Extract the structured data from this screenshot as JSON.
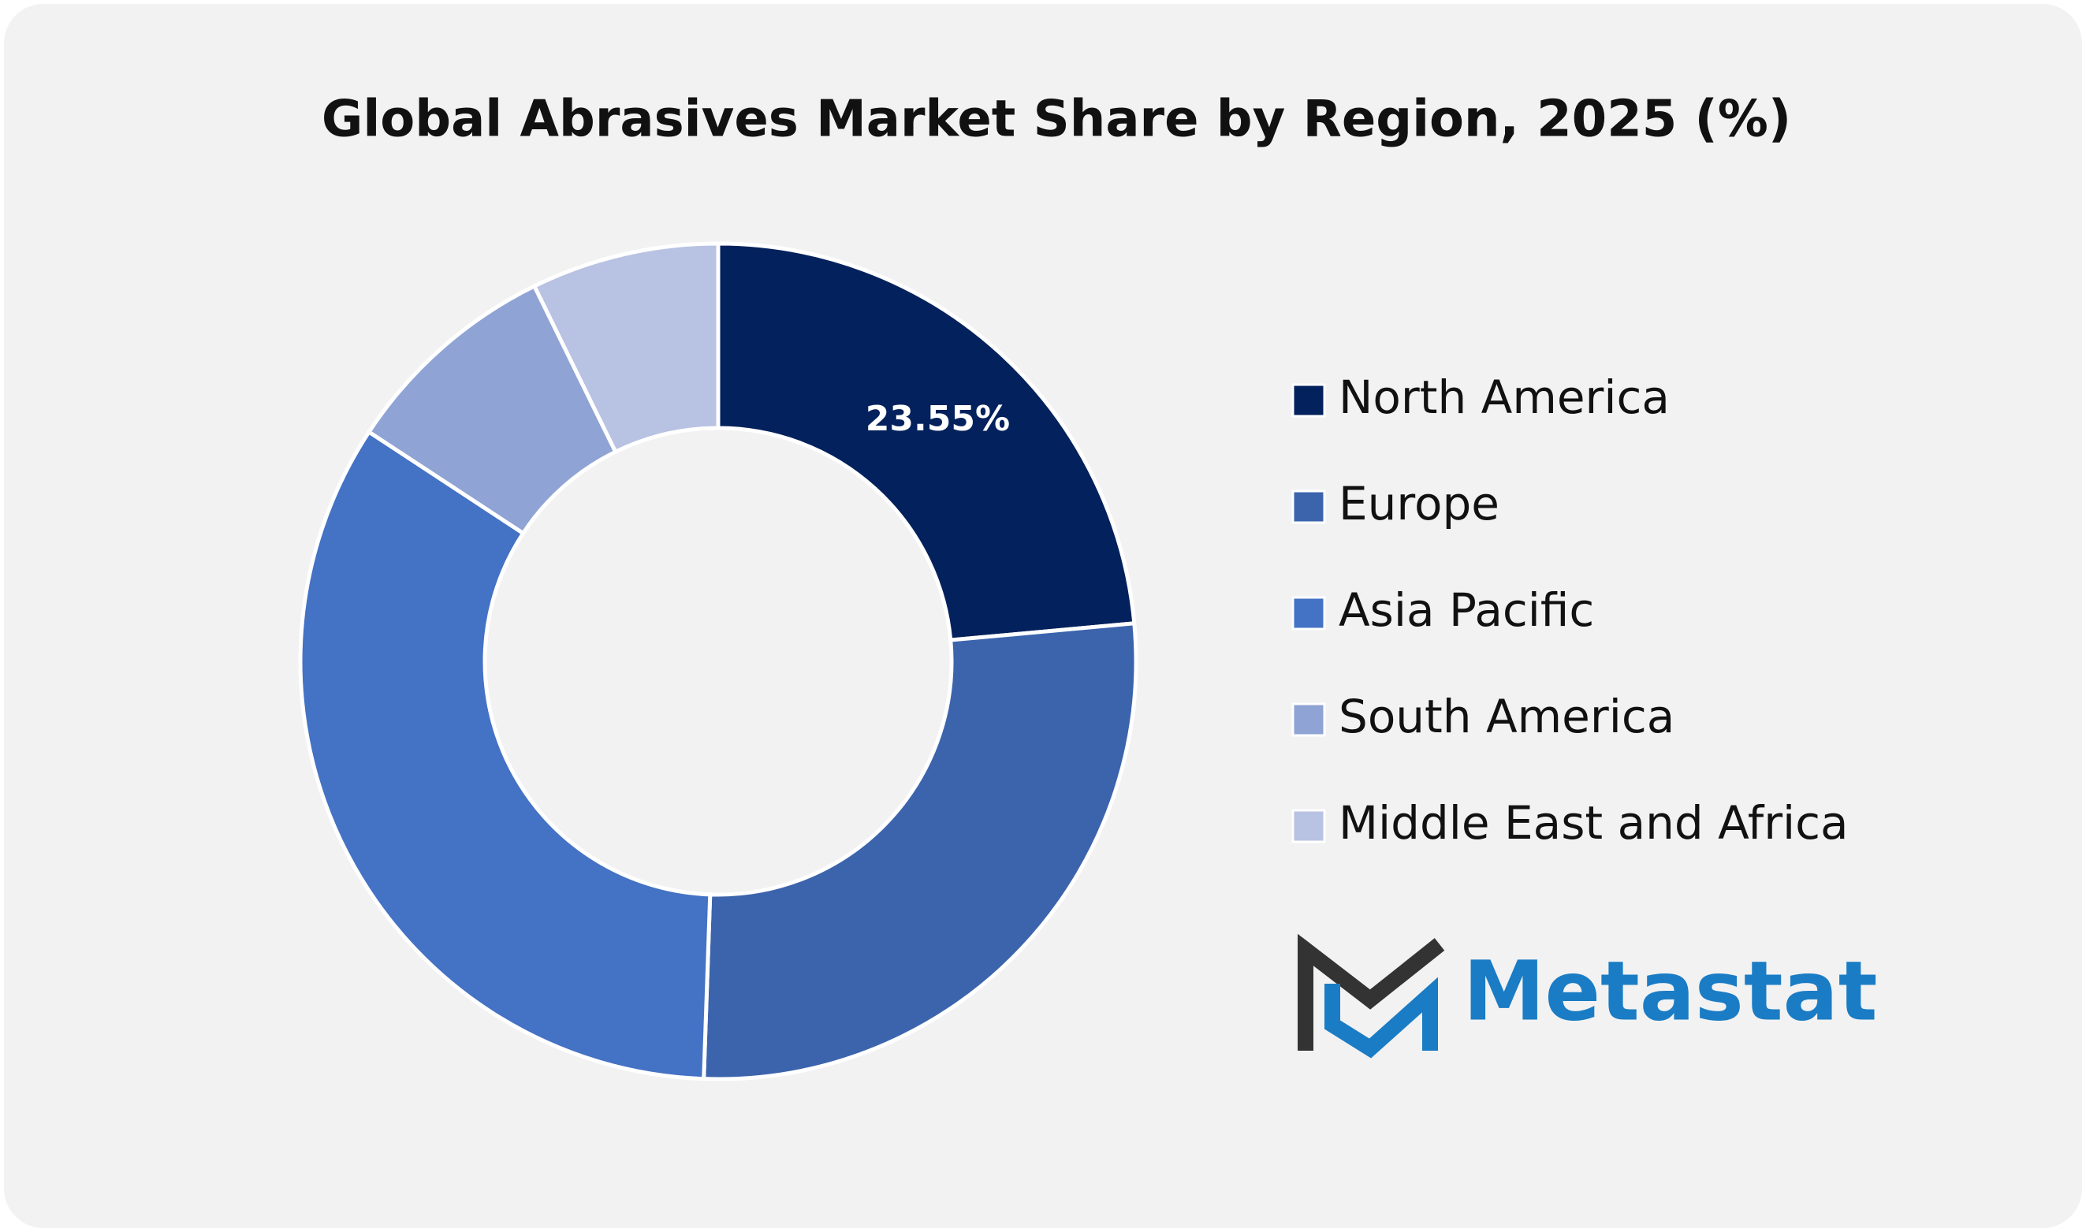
{
  "chart_data": {
    "type": "donut",
    "title": "Global Abrasives Market Share by Region, 2025 (%)",
    "categories": [
      "North America",
      "Europe",
      "Asia Pacific",
      "South America",
      "Middle East and Africa"
    ],
    "values": [
      23.55,
      27,
      33.7,
      8.5,
      7.25
    ],
    "value_labels": [
      "23.55%",
      null,
      null,
      null,
      null
    ],
    "colors": [
      "#03215c",
      "#3c64ad",
      "#4472c4",
      "#8fa3d4",
      "#b8c2e2"
    ],
    "legend": "right"
  },
  "brand": "Metastat"
}
